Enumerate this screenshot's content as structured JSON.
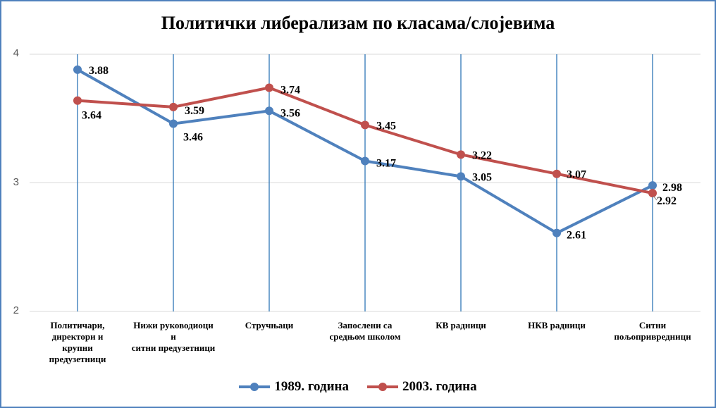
{
  "chart_data": {
    "type": "line",
    "title": "Политички либерализам по класама/слојевима",
    "categories": [
      "Политичари,\nдиректори и\nкрупни\nпредузетници",
      "Нижи руководиоци\nи\nситни предузетници",
      "Стручњаци",
      "Запослени са\nсредњом школом",
      "КВ радници",
      "НКВ радници",
      "Ситни\nпољопривредници"
    ],
    "series": [
      {
        "name": "1989. година",
        "color": "#4f81bd",
        "values": [
          3.88,
          3.46,
          3.56,
          3.17,
          3.05,
          2.61,
          2.98
        ]
      },
      {
        "name": "2003. година",
        "color": "#c0504d",
        "values": [
          3.64,
          3.59,
          3.74,
          3.45,
          3.22,
          3.07,
          2.92
        ]
      }
    ],
    "ylim": [
      2,
      4
    ],
    "yticks": [
      "2",
      "3",
      "4"
    ],
    "xlabel": "",
    "ylabel": "",
    "grid": "vertical",
    "legend": "bottom"
  }
}
